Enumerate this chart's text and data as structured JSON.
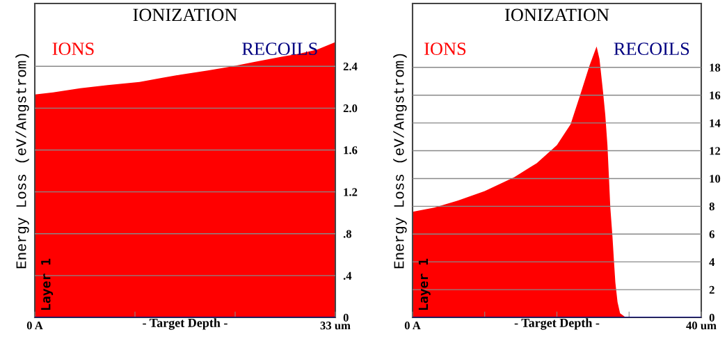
{
  "chart_data": [
    {
      "type": "area",
      "title": "IONIZATION",
      "xlabel": "- Target Depth -",
      "ylabel": "Energy Loss (eV/Angstrom)",
      "annotations": [
        "Layer 1"
      ],
      "series": [
        {
          "name": "IONS",
          "color": "#ff0000",
          "x": [
            0,
            2,
            5,
            8,
            11.5,
            14,
            16,
            19,
            21.7,
            24,
            27,
            29,
            31,
            33
          ],
          "values": [
            2.13,
            2.15,
            2.19,
            2.22,
            2.25,
            2.29,
            2.32,
            2.36,
            2.4,
            2.44,
            2.49,
            2.52,
            2.56,
            2.63
          ]
        },
        {
          "name": "RECOILS",
          "color": "#000080",
          "type": "line",
          "x": [
            0,
            33
          ],
          "values": [
            0,
            0
          ]
        }
      ],
      "xlim": [
        0,
        33
      ],
      "xticks": [
        {
          "value": 0,
          "label": "0 A"
        },
        {
          "value": 11,
          "label": null
        },
        {
          "value": 22,
          "label": null
        },
        {
          "value": 33,
          "label": "33 um"
        }
      ],
      "ylim": [
        0,
        3.0
      ],
      "yticks": [
        0,
        {
          "value": 0.4,
          "label": ".4"
        },
        {
          "value": 0.8,
          "label": ".8"
        },
        1.2,
        1.6,
        {
          "value": 2.0,
          "label": "2.0"
        },
        2.4
      ],
      "grid": "y",
      "legend": "top"
    },
    {
      "type": "area",
      "title": "IONIZATION",
      "xlabel": "- Target Depth -",
      "ylabel": "Energy Loss (eV/Angstrom)",
      "annotations": [
        "Layer 1"
      ],
      "series": [
        {
          "name": "IONS",
          "color": "#ff0000",
          "x": [
            0,
            3,
            6.25,
            10,
            14.1,
            17.2,
            20,
            21.9,
            23.4,
            24.5,
            25.5,
            25.9,
            26.4,
            26.7,
            27.0,
            27.2,
            27.4,
            27.7,
            27.9,
            28.1,
            28.4,
            28.75,
            29.4,
            29.7,
            40
          ],
          "values": [
            7.6,
            7.9,
            8.4,
            9.1,
            10.1,
            11.1,
            12.4,
            13.9,
            16.3,
            18.1,
            19.5,
            18.6,
            16.2,
            14.6,
            12.4,
            10.2,
            7.9,
            5.8,
            4.1,
            2.5,
            1.1,
            0.3,
            0.05,
            0,
            0
          ]
        },
        {
          "name": "RECOILS",
          "color": "#000080",
          "type": "line",
          "x": [
            0,
            40
          ],
          "values": [
            0,
            0
          ]
        }
      ],
      "xlim": [
        0,
        40
      ],
      "xticks": [
        {
          "value": 0,
          "label": "0 A"
        },
        {
          "value": 10,
          "label": null
        },
        {
          "value": 20,
          "label": null
        },
        {
          "value": 30,
          "label": null
        },
        {
          "value": 40,
          "label": "40 um"
        }
      ],
      "ylim": [
        0,
        22.6
      ],
      "yticks": [
        0,
        2,
        4,
        6,
        8,
        10,
        12,
        14,
        16,
        18
      ],
      "grid": "y",
      "legend": "top"
    }
  ]
}
